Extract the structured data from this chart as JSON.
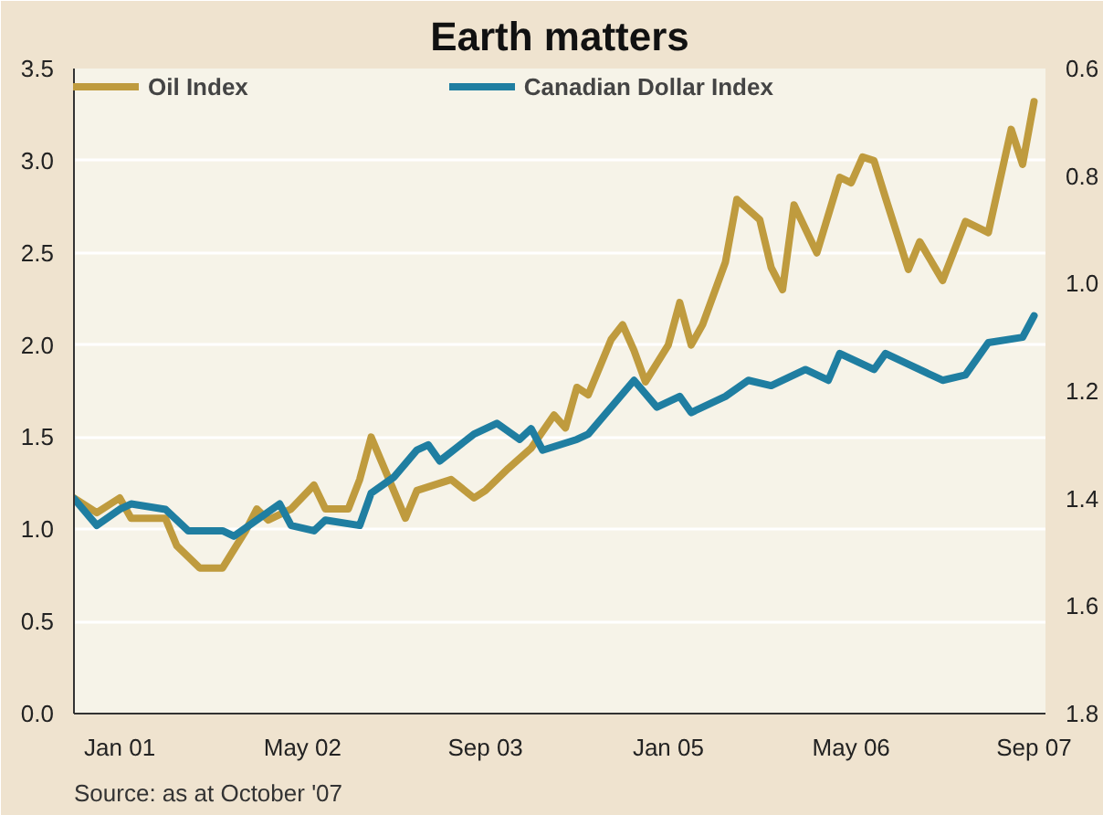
{
  "chart_data": {
    "type": "line",
    "title": "Earth matters",
    "xlim": [
      "2000-09",
      "2007-10"
    ],
    "xticks": [
      {
        "value": "2001-01",
        "label": "Jan 01"
      },
      {
        "value": "2002-05",
        "label": "May 02"
      },
      {
        "value": "2003-09",
        "label": "Sep 03"
      },
      {
        "value": "2005-01",
        "label": "Jan 05"
      },
      {
        "value": "2006-05",
        "label": "May 06"
      },
      {
        "value": "2007-09",
        "label": "Sep 07"
      }
    ],
    "ylim": [
      0,
      3.5
    ],
    "yticks": [
      {
        "value": 0,
        "label": "0.0"
      },
      0.5,
      {
        "value": 1,
        "label": "1.0"
      },
      1.5,
      {
        "value": 2,
        "label": "2.0"
      },
      2.5,
      {
        "value": 3,
        "label": "3.0"
      },
      3.5
    ],
    "y2lim": [
      1.8,
      0.6
    ],
    "y2ticks": [
      0.6,
      0.8,
      {
        "value": 1,
        "label": "1.0"
      },
      1.2,
      1.4,
      1.6,
      1.8
    ],
    "grid": "y",
    "legend": "top",
    "annotations": [
      "Source: as at October '07"
    ],
    "series": [
      {
        "name": "Oil Index",
        "color": "#bf9b3e",
        "x": [
          "2000-09",
          "2000-11",
          "2001-01",
          "2001-02",
          "2001-05",
          "2001-06",
          "2001-08",
          "2001-10",
          "2001-12",
          "2002-01",
          "2002-02",
          "2002-04",
          "2002-06",
          "2002-07",
          "2002-09",
          "2002-10",
          "2002-11",
          "2003-02",
          "2003-03",
          "2003-06",
          "2003-08",
          "2003-09",
          "2003-11",
          "2004-01",
          "2004-03",
          "2004-04",
          "2004-05",
          "2004-06",
          "2004-08",
          "2004-09",
          "2004-10",
          "2004-11",
          "2005-01",
          "2005-02",
          "2005-03",
          "2005-04",
          "2005-06",
          "2005-07",
          "2005-09",
          "2005-10",
          "2005-11",
          "2005-12",
          "2006-02",
          "2006-04",
          "2006-05",
          "2006-06",
          "2006-07",
          "2006-08",
          "2006-10",
          "2006-11",
          "2007-01",
          "2007-03",
          "2007-05",
          "2007-07",
          "2007-08",
          "2007-09"
        ],
        "values": [
          1.17,
          1.09,
          1.17,
          1.06,
          1.06,
          0.91,
          0.79,
          0.79,
          0.99,
          1.11,
          1.05,
          1.11,
          1.24,
          1.11,
          1.11,
          1.27,
          1.5,
          1.06,
          1.21,
          1.27,
          1.17,
          1.21,
          1.33,
          1.44,
          1.62,
          1.55,
          1.77,
          1.73,
          2.03,
          2.11,
          1.97,
          1.8,
          2.0,
          2.23,
          2.0,
          2.11,
          2.45,
          2.79,
          2.68,
          2.42,
          2.3,
          2.76,
          2.5,
          2.91,
          2.88,
          3.02,
          3.0,
          2.8,
          2.41,
          2.56,
          2.35,
          2.67,
          2.61,
          3.17,
          2.98,
          3.32
        ]
      },
      {
        "name": "Canadian Dollar Index",
        "color": "#1f7ea1",
        "axis": "y2",
        "x": [
          "2000-09",
          "2000-11",
          "2001-01",
          "2001-02",
          "2001-05",
          "2001-07",
          "2001-10",
          "2001-11",
          "2002-03",
          "2002-04",
          "2002-06",
          "2002-07",
          "2002-10",
          "2002-11",
          "2003-01",
          "2003-03",
          "2003-04",
          "2003-05",
          "2003-08",
          "2003-10",
          "2003-12",
          "2004-01",
          "2004-02",
          "2004-05",
          "2004-06",
          "2004-10",
          "2004-12",
          "2005-02",
          "2005-03",
          "2005-06",
          "2005-08",
          "2005-10",
          "2006-01",
          "2006-03",
          "2006-04",
          "2006-07",
          "2006-08",
          "2006-10",
          "2007-01",
          "2007-03",
          "2007-05",
          "2007-08",
          "2007-09"
        ],
        "values": [
          1.4,
          1.45,
          1.42,
          1.41,
          1.42,
          1.46,
          1.46,
          1.47,
          1.41,
          1.45,
          1.46,
          1.44,
          1.45,
          1.39,
          1.36,
          1.31,
          1.3,
          1.33,
          1.28,
          1.26,
          1.29,
          1.27,
          1.31,
          1.29,
          1.28,
          1.18,
          1.23,
          1.21,
          1.24,
          1.21,
          1.18,
          1.19,
          1.16,
          1.18,
          1.13,
          1.16,
          1.13,
          1.15,
          1.18,
          1.17,
          1.11,
          1.1,
          1.06
        ]
      }
    ]
  }
}
